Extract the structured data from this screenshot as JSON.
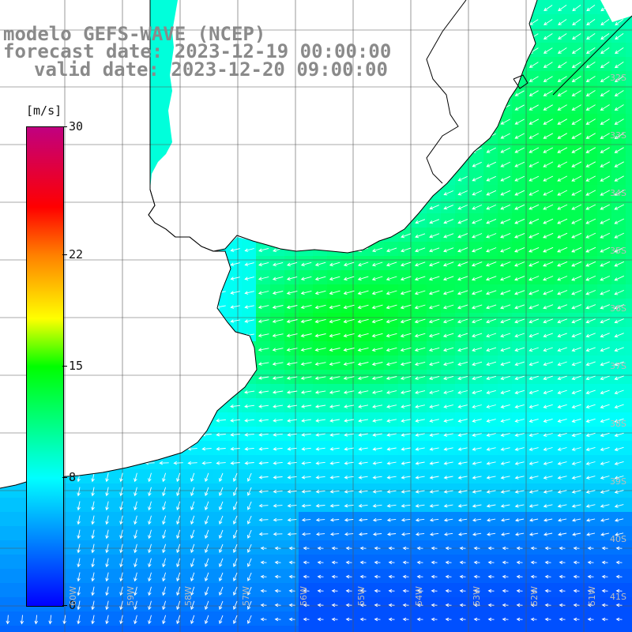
{
  "title": {
    "line1": "modelo GEFS-WAVE (NCEP)",
    "line2": "forecast date: 2023-12-19 00:00:00",
    "line3": "valid date: 2023-12-20 09:00:00"
  },
  "colorbar": {
    "unit": "[m/s]",
    "min": 0,
    "max": 30,
    "ticks": [
      {
        "label": "30",
        "value": 30
      },
      {
        "label": "22",
        "value": 22
      },
      {
        "label": "15",
        "value": 15
      },
      {
        "label": "8",
        "value": 8
      },
      {
        "label": "0",
        "value": 0
      }
    ],
    "stops": [
      {
        "value": 0,
        "color": "#0000ff"
      },
      {
        "value": 4,
        "color": "#0080ff"
      },
      {
        "value": 8,
        "color": "#00ffff"
      },
      {
        "value": 15,
        "color": "#00ff00"
      },
      {
        "value": 18,
        "color": "#ffff00"
      },
      {
        "value": 22,
        "color": "#ff8000"
      },
      {
        "value": 25,
        "color": "#ff0000"
      },
      {
        "value": 30,
        "color": "#c00080"
      }
    ]
  },
  "grid": {
    "latitudes": [
      "32S",
      "33S",
      "34S",
      "35S",
      "36S",
      "37S",
      "38S",
      "39S",
      "40S",
      "41S"
    ],
    "longitudes": [
      "60W",
      "59W",
      "58W",
      "57W",
      "56W",
      "55W",
      "54W",
      "53W",
      "52W",
      "51W"
    ]
  },
  "colors": {
    "land": "#ffffff",
    "coast": "#000000",
    "grid_line": "#555555",
    "arrow": "#ffffff",
    "title": "#8a8a8a"
  }
}
